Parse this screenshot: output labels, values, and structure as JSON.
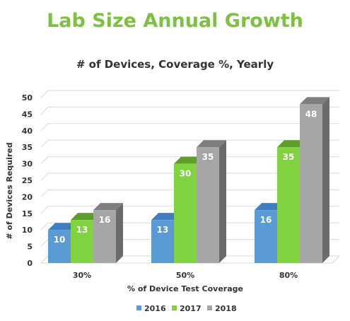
{
  "page_title": "Lab Size Annual Growth",
  "chart_data": {
    "type": "bar",
    "title": "# of Devices, Coverage %, Yearly",
    "xlabel": "% of Device Test Coverage",
    "ylabel": "# of Devices Required",
    "categories": [
      "30%",
      "50%",
      "80%"
    ],
    "ylim": [
      0,
      50
    ],
    "yticks": [
      0,
      5,
      10,
      15,
      20,
      25,
      30,
      35,
      40,
      45,
      50
    ],
    "grid": true,
    "legend_position": "bottom",
    "three_d": true,
    "series": [
      {
        "name": "2016",
        "values": [
          10,
          13,
          16
        ],
        "color": "#5b9bd5",
        "top_color": "#3f7fbf",
        "side_color": "#2e6aa6"
      },
      {
        "name": "2017",
        "values": [
          13,
          30,
          35
        ],
        "color": "#80d23f",
        "top_color": "#5f9e2a",
        "side_color": "#4a8a1e"
      },
      {
        "name": "2018",
        "values": [
          16,
          35,
          48
        ],
        "color": "#a6a6a6",
        "top_color": "#7f7f7f",
        "side_color": "#6b6b6b"
      }
    ]
  }
}
